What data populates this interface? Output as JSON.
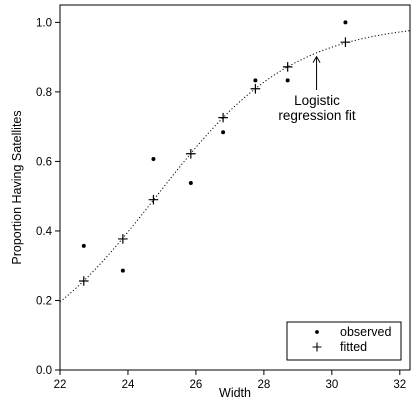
{
  "chart_data": {
    "type": "scatter",
    "title": "",
    "xlabel": "Width",
    "ylabel": "Proportion Having Satellites",
    "xlim": [
      22,
      32.3
    ],
    "ylim": [
      0.0,
      1.05
    ],
    "xticks": [
      22,
      24,
      26,
      28,
      30,
      32
    ],
    "yticks": [
      0.0,
      0.2,
      0.4,
      0.6,
      0.8,
      1.0
    ],
    "xtick_labels": [
      "22",
      "24",
      "26",
      "28",
      "30",
      "32"
    ],
    "ytick_labels": [
      "0.0",
      "0.2",
      "0.4",
      "0.6",
      "0.8",
      "1.0"
    ],
    "grid": false,
    "legend_position": "bottom-right",
    "series": [
      {
        "name": "observed",
        "marker": "dot",
        "x": [
          22.7,
          23.85,
          24.75,
          25.85,
          26.8,
          27.75,
          28.7,
          30.4
        ],
        "y": [
          0.357,
          0.286,
          0.607,
          0.538,
          0.684,
          0.833,
          0.833,
          1.0
        ]
      },
      {
        "name": "fitted",
        "marker": "plus",
        "x": [
          22.7,
          23.85,
          24.75,
          25.85,
          26.8,
          27.75,
          28.7,
          30.4
        ],
        "y": [
          0.256,
          0.377,
          0.49,
          0.622,
          0.726,
          0.809,
          0.872,
          0.943
        ]
      }
    ],
    "curve": {
      "model": "logistic",
      "style": "dotted",
      "intercept": -12.35,
      "slope": 0.4972
    },
    "annotation": {
      "lines": [
        "Logistic",
        "regression fit"
      ],
      "arrow_target": [
        29.55,
        0.91
      ]
    },
    "legend": {
      "observed_label": "observed",
      "fitted_label": "fitted"
    }
  }
}
